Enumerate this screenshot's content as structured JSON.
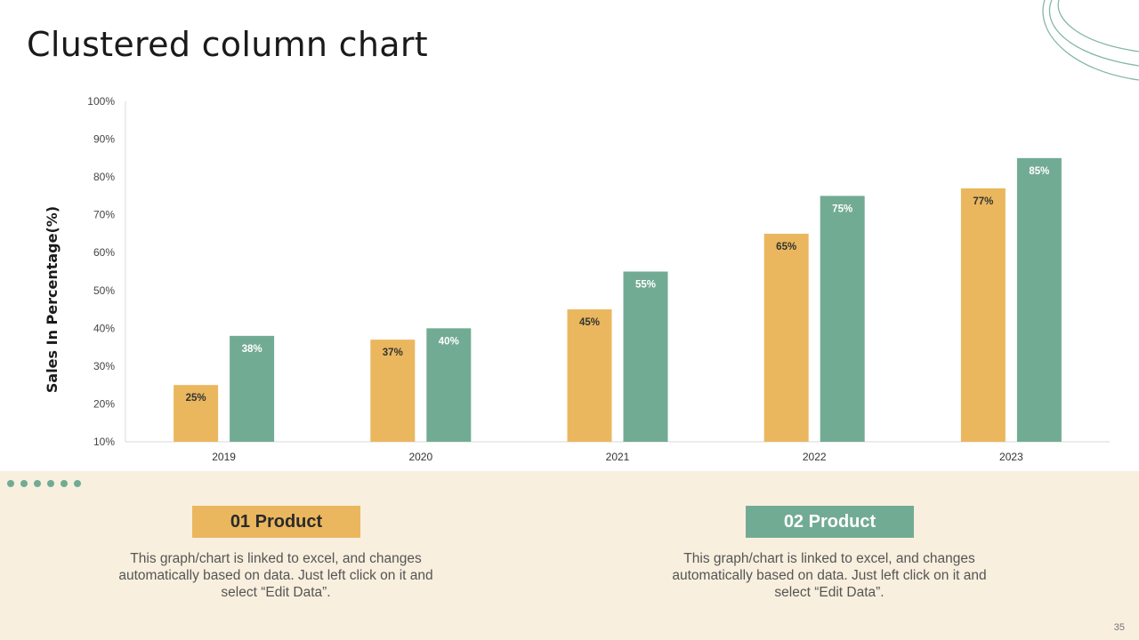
{
  "slide": {
    "title": "Clustered column chart",
    "page_number": "35"
  },
  "colors": {
    "product_1": "#eab75e",
    "product_2": "#72ab93",
    "band": "#f8efde",
    "decoration": "#72ab93"
  },
  "chart_data": {
    "type": "bar",
    "title": "",
    "xlabel": "",
    "ylabel": "Sales In Percentage(%)",
    "categories": [
      "2019",
      "2020",
      "2021",
      "2022",
      "2023"
    ],
    "series": [
      {
        "values": [
          25,
          37,
          45,
          65,
          77
        ],
        "labels": [
          "25%",
          "37%",
          "45%",
          "65%",
          "77%"
        ],
        "color": "#eab75e"
      },
      {
        "values": [
          38,
          40,
          55,
          75,
          85
        ],
        "labels": [
          "38%",
          "40%",
          "55%",
          "75%",
          "85%"
        ],
        "color": "#72ab93"
      }
    ],
    "ylim": [
      10,
      100
    ],
    "yticks": [
      "10%",
      "20%",
      "30%",
      "40%",
      "50%",
      "60%",
      "70%",
      "80%",
      "90%",
      "100%"
    ],
    "grid": false,
    "legend": "none"
  },
  "products": [
    {
      "label": "01 Product",
      "description": "This graph/chart is linked to excel, and changes automatically based on data. Just left click on it and select “Edit Data”."
    },
    {
      "label": "02 Product",
      "description": "This graph/chart is linked to excel, and changes automatically based on data. Just left click on it and select “Edit Data”."
    }
  ]
}
